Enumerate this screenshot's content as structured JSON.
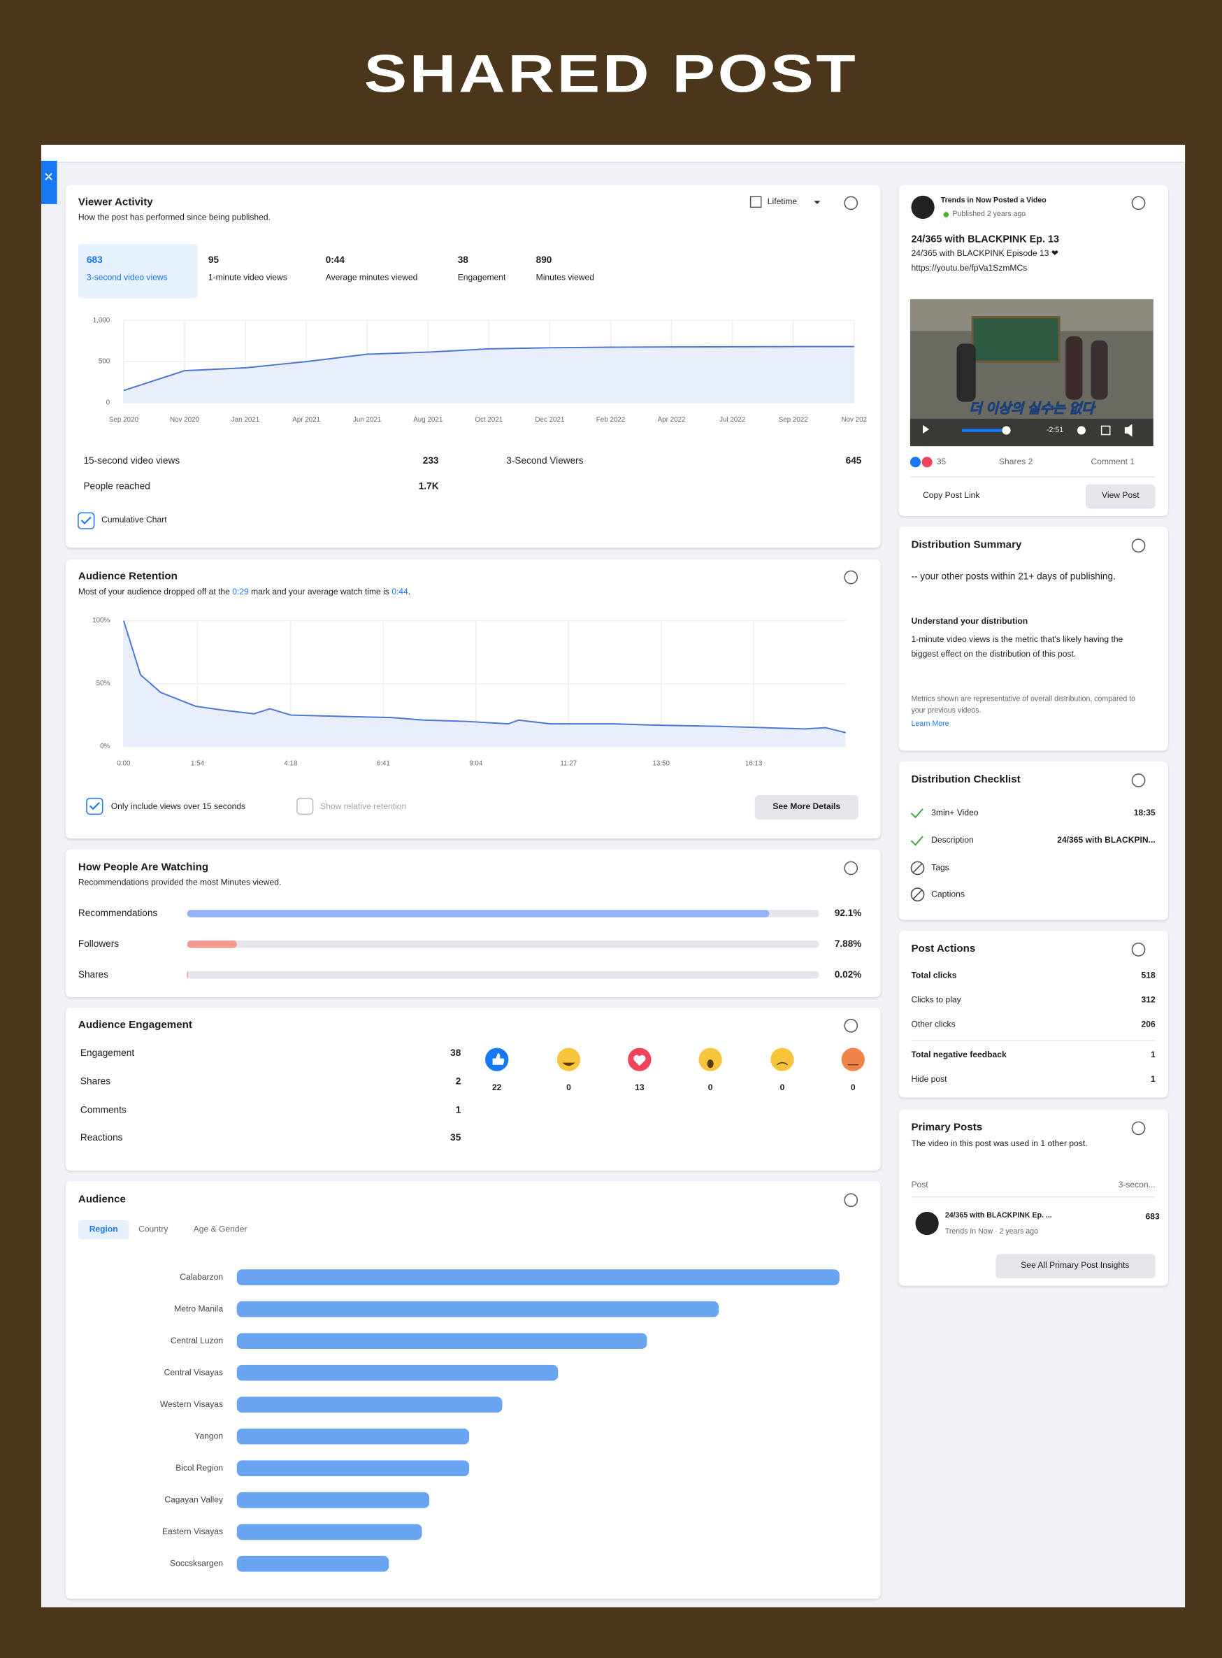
{
  "header": {
    "title": "SHARED POST"
  },
  "viewer_activity": {
    "title": "Viewer Activity",
    "subtitle": "How the post has performed since being published.",
    "period": "Lifetime",
    "metrics": [
      {
        "value": 683,
        "label": "3-second video views"
      },
      {
        "value": 95,
        "label": "1-minute video views"
      },
      {
        "value": "0:44",
        "label": "Average minutes viewed"
      },
      {
        "value": 38,
        "label": "Engagement"
      },
      {
        "value": 890,
        "label": "Minutes viewed"
      }
    ],
    "stats": [
      {
        "label": "15-second video views",
        "value": 233
      },
      {
        "label": "3-Second Viewers",
        "value": 645
      },
      {
        "label": "People reached",
        "value": "1.7K"
      }
    ],
    "checkbox": "Cumulative Chart"
  },
  "audience_retention": {
    "title": "Audience Retention",
    "subtitle": [
      "Most of your audience dropped off at the ",
      "0:29",
      " mark and your average watch time is ",
      "0:44",
      "."
    ],
    "options": [
      "Only include views over 15 seconds",
      "Show relative retention"
    ],
    "button": "See More Details"
  },
  "watching": {
    "title": "How People Are Watching",
    "subtitle": "Recommendations provided the most Minutes viewed."
  },
  "engagement": {
    "title": "Audience Engagement",
    "rows": [
      {
        "label": "Engagement",
        "value": 38
      },
      {
        "label": "Shares",
        "value": 2
      },
      {
        "label": "Comments",
        "value": 1
      },
      {
        "label": "Reactions",
        "value": 35
      }
    ],
    "reactions": [
      22,
      0,
      13,
      0,
      0,
      0
    ]
  },
  "audience": {
    "title": "Audience",
    "tabs": [
      "Region",
      "Country",
      "Age & Gender"
    ]
  },
  "post": {
    "author": "Trends in Now Posted a Video",
    "published": "Published 2 years ago",
    "title": "24/365 with BLACKPINK Ep. 13",
    "description": "24/365 with BLACKPINK Episode 13 ❤",
    "link": "https://youtu.be/fpVa1SzmMCs",
    "caption": "더 이상의 실수는 없다",
    "time": "-2:51",
    "reactions": "35",
    "shares": "Shares 2",
    "comments": "Comment 1",
    "copy": "Copy Post Link",
    "view": "View Post"
  },
  "distribution_summary": {
    "title": "Distribution Summary",
    "text": "-- your other posts within 21+ days of publishing.",
    "heading": "Understand your distribution",
    "body": "1-minute video views is the metric that's likely having the biggest effect on the distribution of this post.",
    "note": "Metrics shown are representative of overall distribution, compared to your previous videos.",
    "link": "Learn More"
  },
  "checklist": {
    "title": "Distribution Checklist",
    "items": [
      {
        "label": "3min+ Video",
        "value": "18:35"
      },
      {
        "label": "Description",
        "value": "24/365 with BLACKPIN..."
      },
      {
        "label": "Tags"
      },
      {
        "label": "Captions"
      }
    ]
  },
  "post_actions": {
    "title": "Post Actions",
    "rows": [
      {
        "label": "Total clicks",
        "value": 518
      },
      {
        "label": "Clicks to play",
        "value": 312
      },
      {
        "label": "Other clicks",
        "value": 206
      },
      {
        "label": "Total negative feedback",
        "value": 1
      },
      {
        "label": "Hide post",
        "value": 1
      }
    ]
  },
  "primary_posts": {
    "title": "Primary Posts",
    "text": "The video in this post was used in 1 other post.",
    "col_post": "Post",
    "col_metric": "3-secon...",
    "row_title": "24/365 with BLACKPINK Ep. ...",
    "row_meta": "Trends In Now · 2 years ago",
    "row_value": 683,
    "button": "See All Primary Post Insights"
  },
  "chart_data": [
    {
      "type": "area",
      "categories": [
        "Sep 2020",
        "Nov 2020",
        "Jan 2021",
        "Apr 2021",
        "Jun 2021",
        "Aug 2021",
        "Oct 2021",
        "Dec 2021",
        "Feb 2022",
        "Apr 2022",
        "Jul 2022",
        "Sep 2022",
        "Nov 202"
      ],
      "values": [
        150,
        390,
        425,
        500,
        590,
        615,
        655,
        668,
        675,
        678,
        680,
        682,
        683
      ],
      "ylim": [
        0,
        1000
      ],
      "yticks": [
        {
          "value": 1000,
          "label": "1,000"
        },
        500,
        0
      ],
      "color": "#4a76d6",
      "grid": true
    },
    {
      "type": "area",
      "x": [
        0,
        26,
        57,
        111,
        152,
        201,
        226,
        258,
        332,
        414,
        463,
        528,
        594,
        610,
        659,
        757,
        823,
        921,
        986,
        1052,
        1084,
        1115
      ],
      "values": [
        100,
        57,
        43,
        32,
        29,
        26,
        30,
        25,
        24,
        23,
        21,
        20,
        18,
        21,
        18,
        18,
        17,
        16,
        15,
        14,
        15,
        11
      ],
      "xlim": [
        0,
        1115
      ],
      "xticks": [
        {
          "value": 0,
          "label": "0:00"
        },
        {
          "value": 114,
          "label": "1:54"
        },
        {
          "value": 258,
          "label": "4:18"
        },
        {
          "value": 401,
          "label": "6:41"
        },
        {
          "value": 544,
          "label": "9:04"
        },
        {
          "value": 687,
          "label": "11:27"
        },
        {
          "value": 830,
          "label": "13:50"
        },
        {
          "value": 973,
          "label": "16:13"
        }
      ],
      "ylim": [
        0,
        100
      ],
      "yticks": [
        {
          "value": 100,
          "label": "100%"
        },
        {
          "value": 50,
          "label": "50%"
        },
        {
          "value": 0,
          "label": "0%"
        }
      ],
      "color": "#4a76d6",
      "grid": true
    },
    {
      "type": "bar",
      "categories": [
        "Recommendations",
        "Followers",
        "Shares"
      ],
      "values": [
        92.1,
        7.88,
        0.02
      ],
      "value_labels": [
        "92.1%",
        "7.88%",
        "0.02%"
      ],
      "colors": [
        "#93b4f5",
        "#f4978e",
        "#f4978e"
      ],
      "xlim": [
        0,
        100
      ]
    },
    {
      "type": "bar",
      "categories": [
        "Calabarzon",
        "Metro Manila",
        "Central Luzon",
        "Central Visayas",
        "Western Visayas",
        "Yangon",
        "Bicol Region",
        "Cagayan Valley",
        "Eastern Visayas",
        "Soccsksargen"
      ],
      "values": [
        98.3,
        78.6,
        66.9,
        52.4,
        43.3,
        37.9,
        37.9,
        31.4,
        30.2,
        24.8
      ],
      "color": "#6aa5f2",
      "xlim": [
        0,
        100
      ]
    }
  ]
}
